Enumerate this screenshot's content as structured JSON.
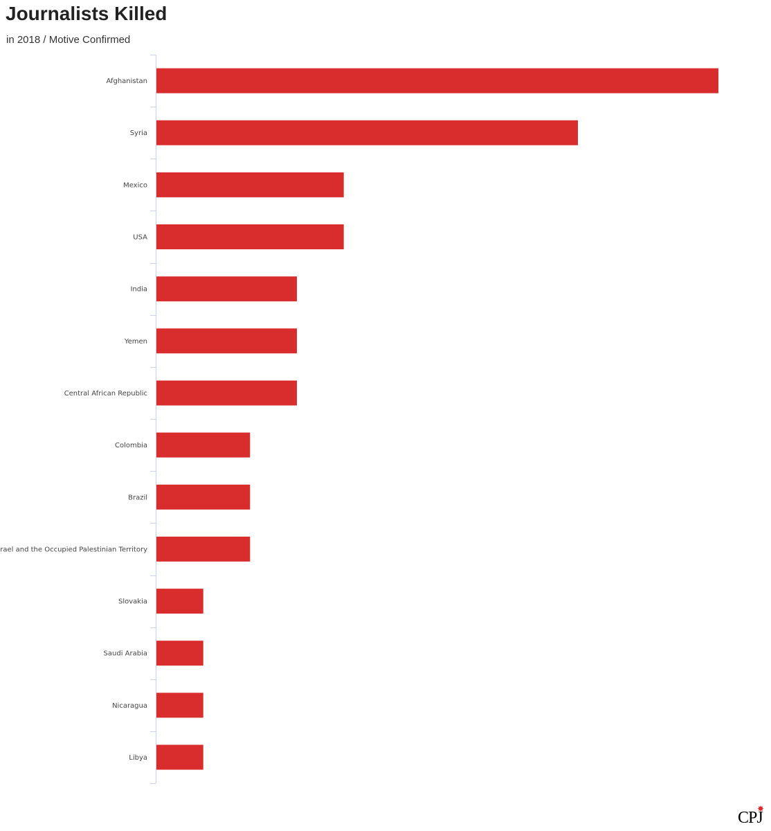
{
  "header": {
    "title": "Journalists Killed",
    "subtitle": "in 2018 / Motive Confirmed"
  },
  "colors": {
    "bar": "#d92d2d",
    "axis": "#c8d3e6",
    "label": "#444444"
  },
  "chart_data": {
    "type": "bar",
    "orientation": "horizontal",
    "title": "Journalists Killed",
    "subtitle": "in 2018 / Motive Confirmed",
    "xlabel": "",
    "ylabel": "",
    "xlim": [
      0,
      12
    ],
    "grid": false,
    "legend": "none",
    "categories": [
      "Afghanistan",
      "Syria",
      "Mexico",
      "USA",
      "India",
      "Yemen",
      "Central African Republic",
      "Colombia",
      "Brazil",
      "Israel and the Occupied Palestinian Territory",
      "Slovakia",
      "Saudi Arabia",
      "Nicaragua",
      "Libya"
    ],
    "values": [
      12,
      9,
      4,
      4,
      3,
      3,
      3,
      2,
      2,
      2,
      1,
      1,
      1,
      1
    ]
  },
  "logo": {
    "text": "CPJ",
    "mark_icon": "star-icon"
  }
}
